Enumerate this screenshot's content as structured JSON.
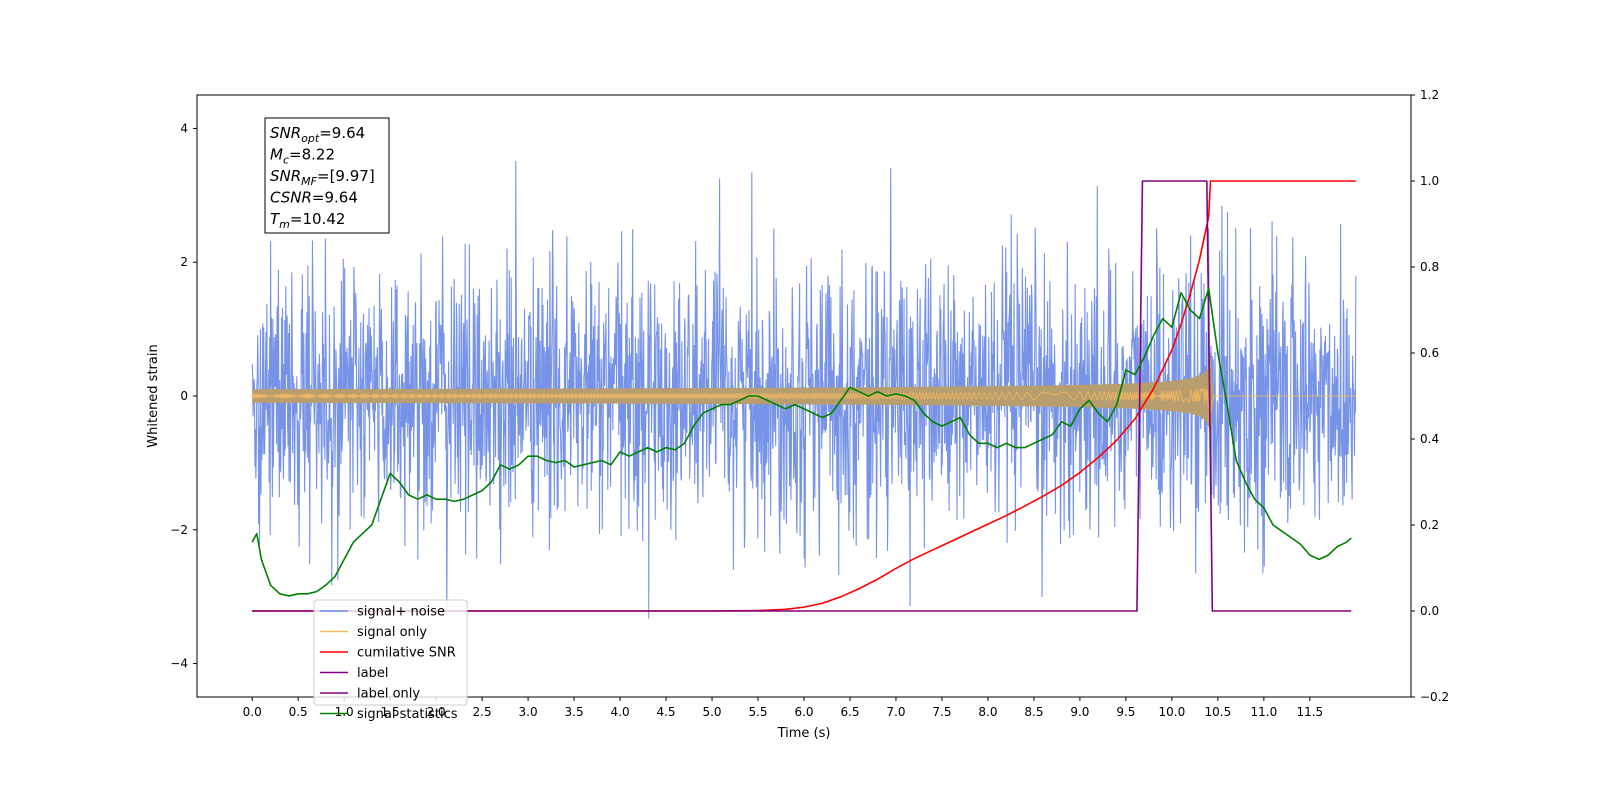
{
  "chart_data": {
    "type": "line",
    "title": "",
    "xlabel": "Time (s)",
    "ylabel": "Whitened strain",
    "xlim": [
      -0.6,
      12.6
    ],
    "ylim": [
      -4.5,
      4.5
    ],
    "y2lim": [
      -0.2,
      1.2
    ],
    "x_ticks": [
      0.0,
      0.5,
      1.0,
      1.5,
      2.0,
      2.5,
      3.0,
      3.5,
      4.0,
      4.5,
      5.0,
      5.5,
      6.0,
      6.5,
      7.0,
      7.5,
      8.0,
      8.5,
      9.0,
      9.5,
      10.0,
      10.5,
      11.0,
      11.5
    ],
    "x_tick_labels": [
      "0.0",
      "0.5",
      "1.0",
      "1.5",
      "2.0",
      "2.5",
      "3.0",
      "3.5",
      "4.0",
      "4.5",
      "5.0",
      "5.5",
      "6.0",
      "6.5",
      "7.0",
      "7.5",
      "8.0",
      "8.5",
      "9.0",
      "9.5",
      "10.0",
      "10.5",
      "11.0",
      "11.5"
    ],
    "y_ticks": [
      -4,
      -2,
      0,
      2,
      4
    ],
    "y_tick_labels": [
      "−4",
      "−2",
      "0",
      "2",
      "4"
    ],
    "y2_ticks": [
      -0.2,
      0.0,
      0.2,
      0.4,
      0.6,
      0.8,
      1.0,
      1.2
    ],
    "y2_tick_labels": [
      "−0.2",
      "0.0",
      "0.2",
      "0.4",
      "0.6",
      "0.8",
      "1.0",
      "1.2"
    ],
    "grid": false,
    "legend_position": "bottom-left",
    "annotation": {
      "lines": [
        {
          "base": "SNR",
          "sub": "opt",
          "rest": "=9.64"
        },
        {
          "base": "M",
          "sub": "c",
          "rest": "=8.22"
        },
        {
          "base": "SNR",
          "sub": "MF",
          "rest": "=[9.97]"
        },
        {
          "base": "CSNR",
          "sub": "",
          "rest": "=9.64"
        },
        {
          "base": "T",
          "sub": "m",
          "rest": "=10.42"
        }
      ]
    },
    "series": [
      {
        "name": "signal+ noise",
        "color": "#6f8de6",
        "axis": "left",
        "kind": "noise",
        "t_range": [
          0.0,
          12.0
        ],
        "sigma": 1.0,
        "y_range": [
          -4.05,
          4.12
        ]
      },
      {
        "name": "signal only",
        "color": "#f5b961",
        "axis": "left",
        "kind": "chirp",
        "t_start": 0.0,
        "t_merge": 10.42,
        "t_end": 12.0,
        "peak_amplitude": 0.75
      },
      {
        "name": "cumilative SNR",
        "color": "#ff0000",
        "axis": "right",
        "x": [
          0.0,
          5.0,
          5.5,
          5.8,
          6.0,
          6.2,
          6.4,
          6.6,
          6.8,
          7.0,
          7.2,
          7.4,
          7.6,
          7.8,
          8.0,
          8.2,
          8.4,
          8.6,
          8.8,
          9.0,
          9.2,
          9.4,
          9.6,
          9.8,
          10.0,
          10.1,
          10.2,
          10.3,
          10.4,
          10.42,
          12.0
        ],
        "y": [
          0.0,
          0.0,
          0.001,
          0.004,
          0.009,
          0.018,
          0.033,
          0.052,
          0.074,
          0.099,
          0.122,
          0.142,
          0.162,
          0.182,
          0.202,
          0.222,
          0.244,
          0.267,
          0.292,
          0.322,
          0.357,
          0.397,
          0.447,
          0.517,
          0.607,
          0.667,
          0.737,
          0.817,
          0.917,
          1.0,
          1.0
        ]
      },
      {
        "name": "label",
        "color": "#800080",
        "axis": "right",
        "x": [
          0.0,
          9.62,
          9.68,
          10.38,
          10.44,
          11.95
        ],
        "y": [
          0.0,
          0.0,
          1.0,
          1.0,
          0.0,
          0.0
        ]
      },
      {
        "name": "label only",
        "color": "#800080",
        "axis": "right",
        "x": [],
        "y": []
      },
      {
        "name": "signal statistics",
        "color": "#008000",
        "axis": "right",
        "x": [
          0.0,
          0.05,
          0.1,
          0.2,
          0.3,
          0.4,
          0.5,
          0.6,
          0.7,
          0.8,
          0.9,
          1.0,
          1.1,
          1.2,
          1.3,
          1.4,
          1.5,
          1.6,
          1.7,
          1.8,
          1.9,
          2.0,
          2.1,
          2.2,
          2.3,
          2.4,
          2.5,
          2.6,
          2.7,
          2.8,
          2.9,
          3.0,
          3.1,
          3.2,
          3.3,
          3.4,
          3.5,
          3.6,
          3.7,
          3.8,
          3.9,
          4.0,
          4.1,
          4.2,
          4.3,
          4.4,
          4.5,
          4.6,
          4.7,
          4.8,
          4.9,
          5.0,
          5.1,
          5.2,
          5.3,
          5.4,
          5.5,
          5.6,
          5.7,
          5.8,
          5.9,
          6.0,
          6.1,
          6.2,
          6.3,
          6.4,
          6.5,
          6.6,
          6.7,
          6.8,
          6.9,
          7.0,
          7.1,
          7.2,
          7.3,
          7.4,
          7.5,
          7.6,
          7.7,
          7.8,
          7.9,
          8.0,
          8.1,
          8.2,
          8.3,
          8.4,
          8.5,
          8.6,
          8.7,
          8.8,
          8.9,
          9.0,
          9.1,
          9.2,
          9.3,
          9.4,
          9.5,
          9.6,
          9.7,
          9.8,
          9.9,
          10.0,
          10.1,
          10.2,
          10.3,
          10.4,
          10.5,
          10.6,
          10.7,
          10.8,
          10.9,
          11.0,
          11.1,
          11.2,
          11.3,
          11.4,
          11.5,
          11.6,
          11.7,
          11.8,
          11.9,
          11.95
        ],
        "y": [
          0.16,
          0.18,
          0.12,
          0.06,
          0.04,
          0.035,
          0.04,
          0.04,
          0.045,
          0.06,
          0.08,
          0.12,
          0.16,
          0.18,
          0.2,
          0.26,
          0.32,
          0.3,
          0.27,
          0.26,
          0.27,
          0.26,
          0.26,
          0.255,
          0.26,
          0.27,
          0.28,
          0.3,
          0.34,
          0.33,
          0.34,
          0.36,
          0.36,
          0.35,
          0.345,
          0.35,
          0.335,
          0.34,
          0.345,
          0.35,
          0.34,
          0.37,
          0.36,
          0.37,
          0.38,
          0.37,
          0.38,
          0.375,
          0.39,
          0.43,
          0.46,
          0.47,
          0.48,
          0.48,
          0.49,
          0.5,
          0.5,
          0.49,
          0.48,
          0.47,
          0.48,
          0.47,
          0.46,
          0.45,
          0.46,
          0.49,
          0.52,
          0.51,
          0.5,
          0.51,
          0.5,
          0.505,
          0.5,
          0.49,
          0.46,
          0.44,
          0.43,
          0.44,
          0.45,
          0.41,
          0.39,
          0.39,
          0.38,
          0.39,
          0.38,
          0.38,
          0.39,
          0.4,
          0.41,
          0.44,
          0.43,
          0.47,
          0.49,
          0.46,
          0.44,
          0.48,
          0.56,
          0.55,
          0.59,
          0.64,
          0.68,
          0.66,
          0.74,
          0.7,
          0.68,
          0.75,
          0.6,
          0.48,
          0.35,
          0.3,
          0.26,
          0.24,
          0.2,
          0.185,
          0.17,
          0.155,
          0.13,
          0.12,
          0.13,
          0.15,
          0.16,
          0.17
        ]
      }
    ]
  }
}
